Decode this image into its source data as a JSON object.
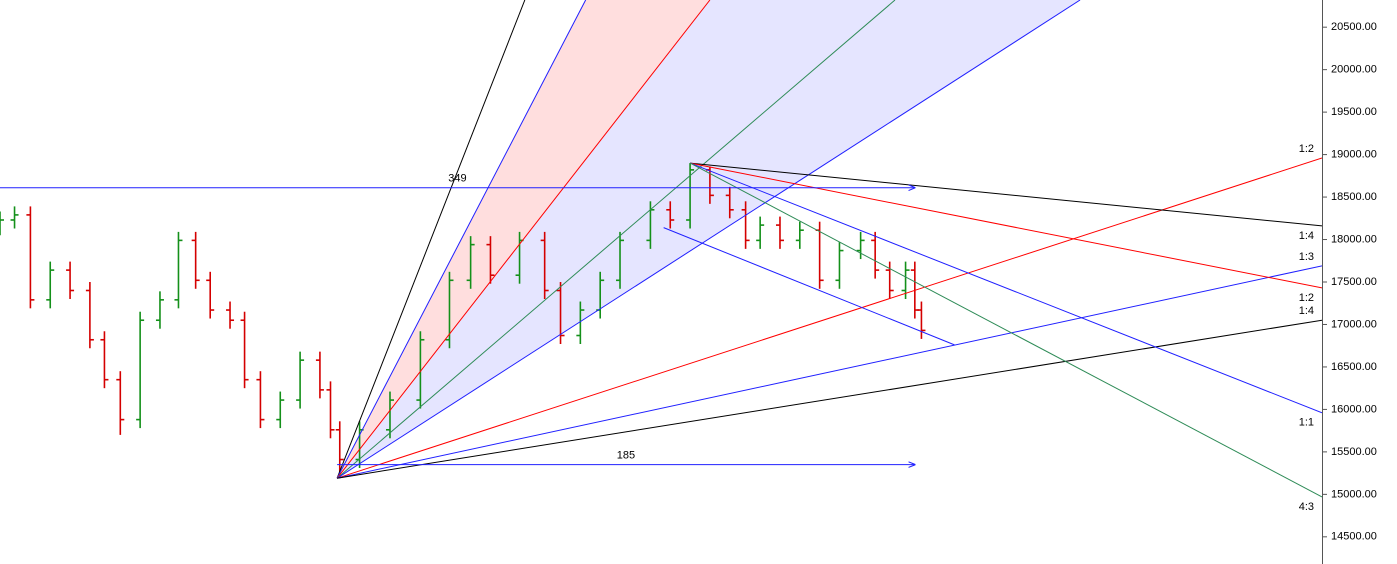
{
  "chart_data": {
    "type": "ohlc",
    "xlim": [
      0,
      100
    ],
    "ylim": [
      14180,
      20820
    ],
    "yticks": [
      {
        "value": 14500,
        "label": "14500.00"
      },
      {
        "value": 15000,
        "label": "15000.00"
      },
      {
        "value": 15500,
        "label": "15500.00"
      },
      {
        "value": 16000,
        "label": "16000.00"
      },
      {
        "value": 16500,
        "label": "16500.00"
      },
      {
        "value": 17000,
        "label": "17000.00"
      },
      {
        "value": 17500,
        "label": "17500.00"
      },
      {
        "value": 18000,
        "label": "18000.00"
      },
      {
        "value": 18500,
        "label": "18500.00"
      },
      {
        "value": 19000,
        "label": "19000.00"
      },
      {
        "value": 19500,
        "label": "19500.00"
      },
      {
        "value": 20000,
        "label": "20000.00"
      },
      {
        "value": 20500,
        "label": "20500.00"
      }
    ],
    "up_color": "#14901a",
    "down_color": "#d40000",
    "x": [
      0,
      1.1,
      2.3,
      3.8,
      5.3,
      6.8,
      7.9,
      9.1,
      10.6,
      12.1,
      13.5,
      14.8,
      15.9,
      17.4,
      18.5,
      19.7,
      21.2,
      22.7,
      24.2,
      25,
      25.7,
      27.2,
      29.5,
      31.8,
      34,
      35.6,
      37.1,
      39.3,
      41.2,
      42.4,
      43.9,
      45.4,
      46.9,
      49.2,
      50.7,
      52.2,
      53.7,
      55.2,
      56.4,
      57.5,
      59,
      60.5,
      62,
      63.5,
      65.1,
      66.2,
      67.3,
      68.5,
      69.2,
      69.7
    ],
    "open": [
      18150,
      18230,
      18290,
      17290,
      17640,
      17400,
      16820,
      16350,
      15880,
      17050,
      17290,
      17990,
      17520,
      17170,
      17050,
      16350,
      15880,
      16110,
      16580,
      16230,
      15760,
      15410,
      15760,
      16110,
      16820,
      17520,
      17940,
      17580,
      17990,
      17400,
      16870,
      17170,
      17520,
      17990,
      18350,
      18230,
      18820,
      18520,
      18350,
      17990,
      18170,
      17990,
      18110,
      17520,
      17870,
      17990,
      17640,
      17400,
      17640,
      17170
    ],
    "high": [
      18330,
      18390,
      18390,
      17740,
      17740,
      17500,
      16920,
      16450,
      17150,
      17390,
      18090,
      18090,
      17620,
      17270,
      17150,
      16450,
      16210,
      16680,
      16680,
      16330,
      15860,
      15860,
      16210,
      16920,
      17620,
      18040,
      18040,
      18090,
      18090,
      17500,
      17270,
      17620,
      18090,
      18450,
      18450,
      18900,
      18860,
      18620,
      18450,
      18270,
      18270,
      18210,
      18210,
      17970,
      18090,
      18090,
      17740,
      17740,
      17740,
      17270
    ],
    "low": [
      18050,
      18130,
      17190,
      17190,
      17300,
      16720,
      16250,
      15700,
      15780,
      16950,
      17190,
      17420,
      17070,
      16950,
      16250,
      15780,
      15780,
      16010,
      16130,
      15660,
      15190,
      15310,
      15660,
      16010,
      16720,
      17420,
      17480,
      17480,
      17300,
      16770,
      16770,
      17070,
      17420,
      17890,
      18130,
      18130,
      18420,
      18250,
      17890,
      17890,
      17890,
      17890,
      17420,
      17420,
      17770,
      17540,
      17300,
      17300,
      17070,
      16830
    ],
    "close": [
      18230,
      18290,
      17290,
      17640,
      17400,
      16820,
      16350,
      15880,
      17050,
      17290,
      17990,
      17520,
      17170,
      17050,
      16350,
      15880,
      16110,
      16580,
      16230,
      15760,
      15410,
      15760,
      16110,
      16820,
      17520,
      17940,
      17580,
      17990,
      17400,
      16870,
      17170,
      17520,
      17990,
      18350,
      18230,
      18820,
      18520,
      18350,
      17990,
      18170,
      17990,
      18110,
      17520,
      17870,
      17990,
      17640,
      17400,
      17640,
      17170,
      16930
    ],
    "fan_lines": [
      {
        "x1": 25.5,
        "p1": 15190,
        "x2": 39.7,
        "p2": 20820,
        "color": "#000000"
      },
      {
        "x1": 25.5,
        "p1": 15190,
        "x2": 44.3,
        "p2": 20820,
        "color": "#2020ff"
      },
      {
        "x1": 25.5,
        "p1": 15190,
        "x2": 53.7,
        "p2": 20820,
        "color": "#ff0000"
      },
      {
        "x1": 25.5,
        "p1": 15190,
        "x2": 67.7,
        "p2": 20820,
        "color": "#2e8b57"
      },
      {
        "x1": 25.5,
        "p1": 15190,
        "x2": 81.7,
        "p2": 20820,
        "color": "#2020ff"
      },
      {
        "x1": 25.5,
        "p1": 15190,
        "x2": 100,
        "p2": 18960,
        "color": "#ff0000",
        "label": "1:2"
      },
      {
        "x1": 25.5,
        "p1": 15190,
        "x2": 100,
        "p2": 17690,
        "color": "#2020ff",
        "label": "1:3"
      },
      {
        "x1": 25.5,
        "p1": 15190,
        "x2": 100,
        "p2": 17050,
        "color": "#000000",
        "label": "1:4"
      },
      {
        "x1": 52.2,
        "p1": 18900,
        "x2": 100,
        "p2": 18160,
        "color": "#000000",
        "label": "1:4"
      },
      {
        "x1": 52.2,
        "p1": 18900,
        "x2": 100,
        "p2": 17430,
        "color": "#ff0000",
        "label": "1:2"
      },
      {
        "x1": 52.2,
        "p1": 18900,
        "x2": 100,
        "p2": 15960,
        "color": "#2020ff",
        "label": "1:1"
      },
      {
        "x1": 52.2,
        "p1": 18900,
        "x2": 100,
        "p2": 14970,
        "color": "#2e8b57",
        "label": "4:3"
      },
      {
        "x1": 50.2,
        "p1": 18140,
        "x2": 72.2,
        "p2": 16760,
        "color": "#2020ff"
      }
    ],
    "fills": [
      {
        "between": [
          1,
          2
        ],
        "color": "rgba(255,0,0,0.13)"
      },
      {
        "between": [
          2,
          4
        ],
        "color": "rgba(40,40,255,0.12)"
      }
    ],
    "measures": [
      {
        "x1": 0,
        "x2": 69.2,
        "price": 18610,
        "label": "349",
        "color": "#2020ff"
      },
      {
        "x1": 25.5,
        "x2": 69.2,
        "price": 15350,
        "label": "185",
        "color": "#2020ff"
      }
    ]
  }
}
